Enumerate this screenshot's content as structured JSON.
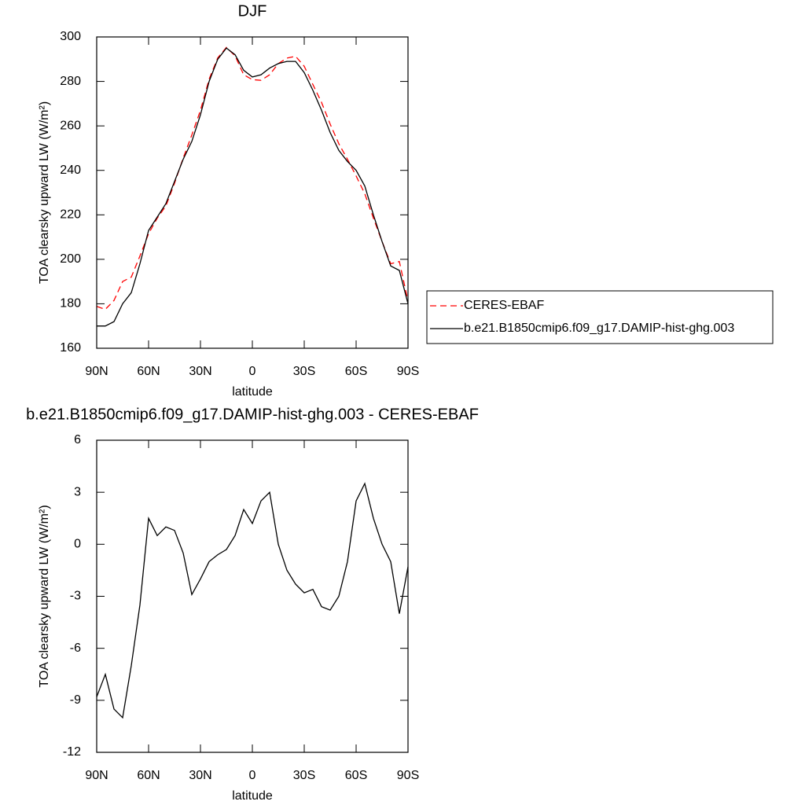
{
  "chart_data": [
    {
      "type": "line",
      "title": "DJF",
      "xlabel": "latitude",
      "ylabel": "TOA clearsky upward LW (W/m²)",
      "x": [
        90,
        85,
        80,
        75,
        70,
        65,
        60,
        55,
        50,
        45,
        40,
        35,
        30,
        25,
        20,
        15,
        10,
        5,
        0,
        -5,
        -10,
        -15,
        -20,
        -25,
        -30,
        -35,
        -40,
        -45,
        -50,
        -55,
        -60,
        -65,
        -70,
        -75,
        -80,
        -85,
        -90
      ],
      "series": [
        {
          "name": "CERES-EBAF",
          "color": "#ff0000",
          "dash": true,
          "values": [
            178.8,
            177.5,
            181.5,
            190,
            192,
            201.5,
            211.5,
            218.5,
            224,
            234.2,
            245.5,
            255.9,
            267,
            281,
            290.6,
            295.3,
            291.5,
            283,
            280.8,
            280.5,
            283,
            288,
            290.5,
            291.3,
            286.8,
            278.6,
            270.6,
            260.8,
            252,
            245,
            237.5,
            229.5,
            218.5,
            208,
            198,
            199,
            181.3
          ]
        },
        {
          "name": "b.e21.B1850cmip6.f09_g17.DAMIP-hist-ghg.003",
          "color": "#000000",
          "dash": false,
          "values": [
            170,
            170,
            172,
            180,
            185,
            198,
            213,
            219,
            225,
            235,
            245,
            253,
            265,
            280,
            290,
            295,
            292,
            285,
            282,
            283,
            286,
            288,
            289,
            289,
            284,
            276,
            267,
            257,
            249,
            244,
            240,
            233,
            220,
            208,
            197,
            195,
            180
          ]
        }
      ],
      "xlim": [
        90,
        -90
      ],
      "xticks": [
        {
          "value": 90,
          "label": "90N"
        },
        {
          "value": 60,
          "label": "60N"
        },
        {
          "value": 30,
          "label": "30N"
        },
        0,
        {
          "value": -30,
          "label": "30S"
        },
        {
          "value": -60,
          "label": "60S"
        },
        {
          "value": -90,
          "label": "90S"
        }
      ],
      "ylim": [
        160,
        300
      ],
      "yticks": [
        160,
        180,
        200,
        220,
        240,
        260,
        280,
        300
      ],
      "legend": "right"
    },
    {
      "type": "line",
      "title": "b.e21.B1850cmip6.f09_g17.DAMIP-hist-ghg.003 - CERES-EBAF",
      "xlabel": "latitude",
      "ylabel": "TOA clearsky upward LW (W/m²)",
      "x": [
        90,
        85,
        80,
        75,
        70,
        65,
        60,
        55,
        50,
        45,
        40,
        35,
        30,
        25,
        20,
        15,
        10,
        5,
        0,
        -5,
        -10,
        -15,
        -20,
        -25,
        -30,
        -35,
        -40,
        -45,
        -50,
        -55,
        -60,
        -65,
        -70,
        -75,
        -80,
        -85,
        -90
      ],
      "values": [
        -8.8,
        -7.5,
        -9.5,
        -10,
        -7,
        -3.5,
        1.5,
        0.5,
        1,
        0.8,
        -0.5,
        -2.9,
        -2,
        -1,
        -0.6,
        -0.3,
        0.5,
        2,
        1.2,
        2.5,
        3,
        0,
        -1.5,
        -2.3,
        -2.8,
        -2.6,
        -3.6,
        -3.8,
        -3,
        -1,
        2.5,
        3.5,
        1.5,
        0,
        -1,
        -4,
        -1.3
      ],
      "color": "#000000",
      "xlim": [
        90,
        -90
      ],
      "xticks": [
        {
          "value": 90,
          "label": "90N"
        },
        {
          "value": 60,
          "label": "60N"
        },
        {
          "value": 30,
          "label": "30N"
        },
        0,
        {
          "value": -30,
          "label": "30S"
        },
        {
          "value": -60,
          "label": "60S"
        },
        {
          "value": -90,
          "label": "90S"
        }
      ],
      "ylim": [
        -12,
        6
      ],
      "yticks": [
        -12,
        -9,
        -6,
        -3,
        0,
        3,
        6
      ]
    }
  ]
}
